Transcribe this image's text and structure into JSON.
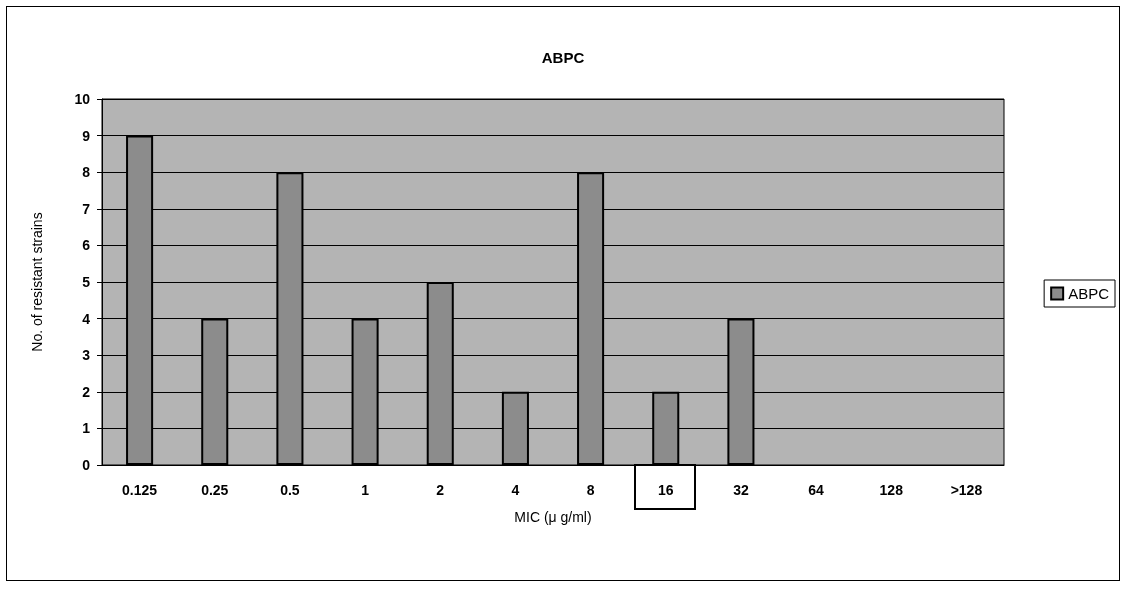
{
  "chart_data": {
    "type": "bar",
    "title": "ABPC",
    "xlabel": "MIC (μ g/ml)",
    "ylabel": "No. of resistant strains",
    "categories": [
      "0.125",
      "0.25",
      "0.5",
      "1",
      "2",
      "4",
      "8",
      "16",
      "32",
      "64",
      "128",
      ">128"
    ],
    "series": [
      {
        "name": "ABPC",
        "color": "#8c8c8c",
        "values": [
          9,
          4,
          8,
          4,
          5,
          2,
          8,
          2,
          4,
          0,
          0,
          0
        ]
      }
    ],
    "ylim": [
      0,
      10
    ],
    "yticks": [
      0,
      1,
      2,
      3,
      4,
      5,
      6,
      7,
      8,
      9,
      10
    ],
    "grid": "y",
    "legend": "right"
  }
}
